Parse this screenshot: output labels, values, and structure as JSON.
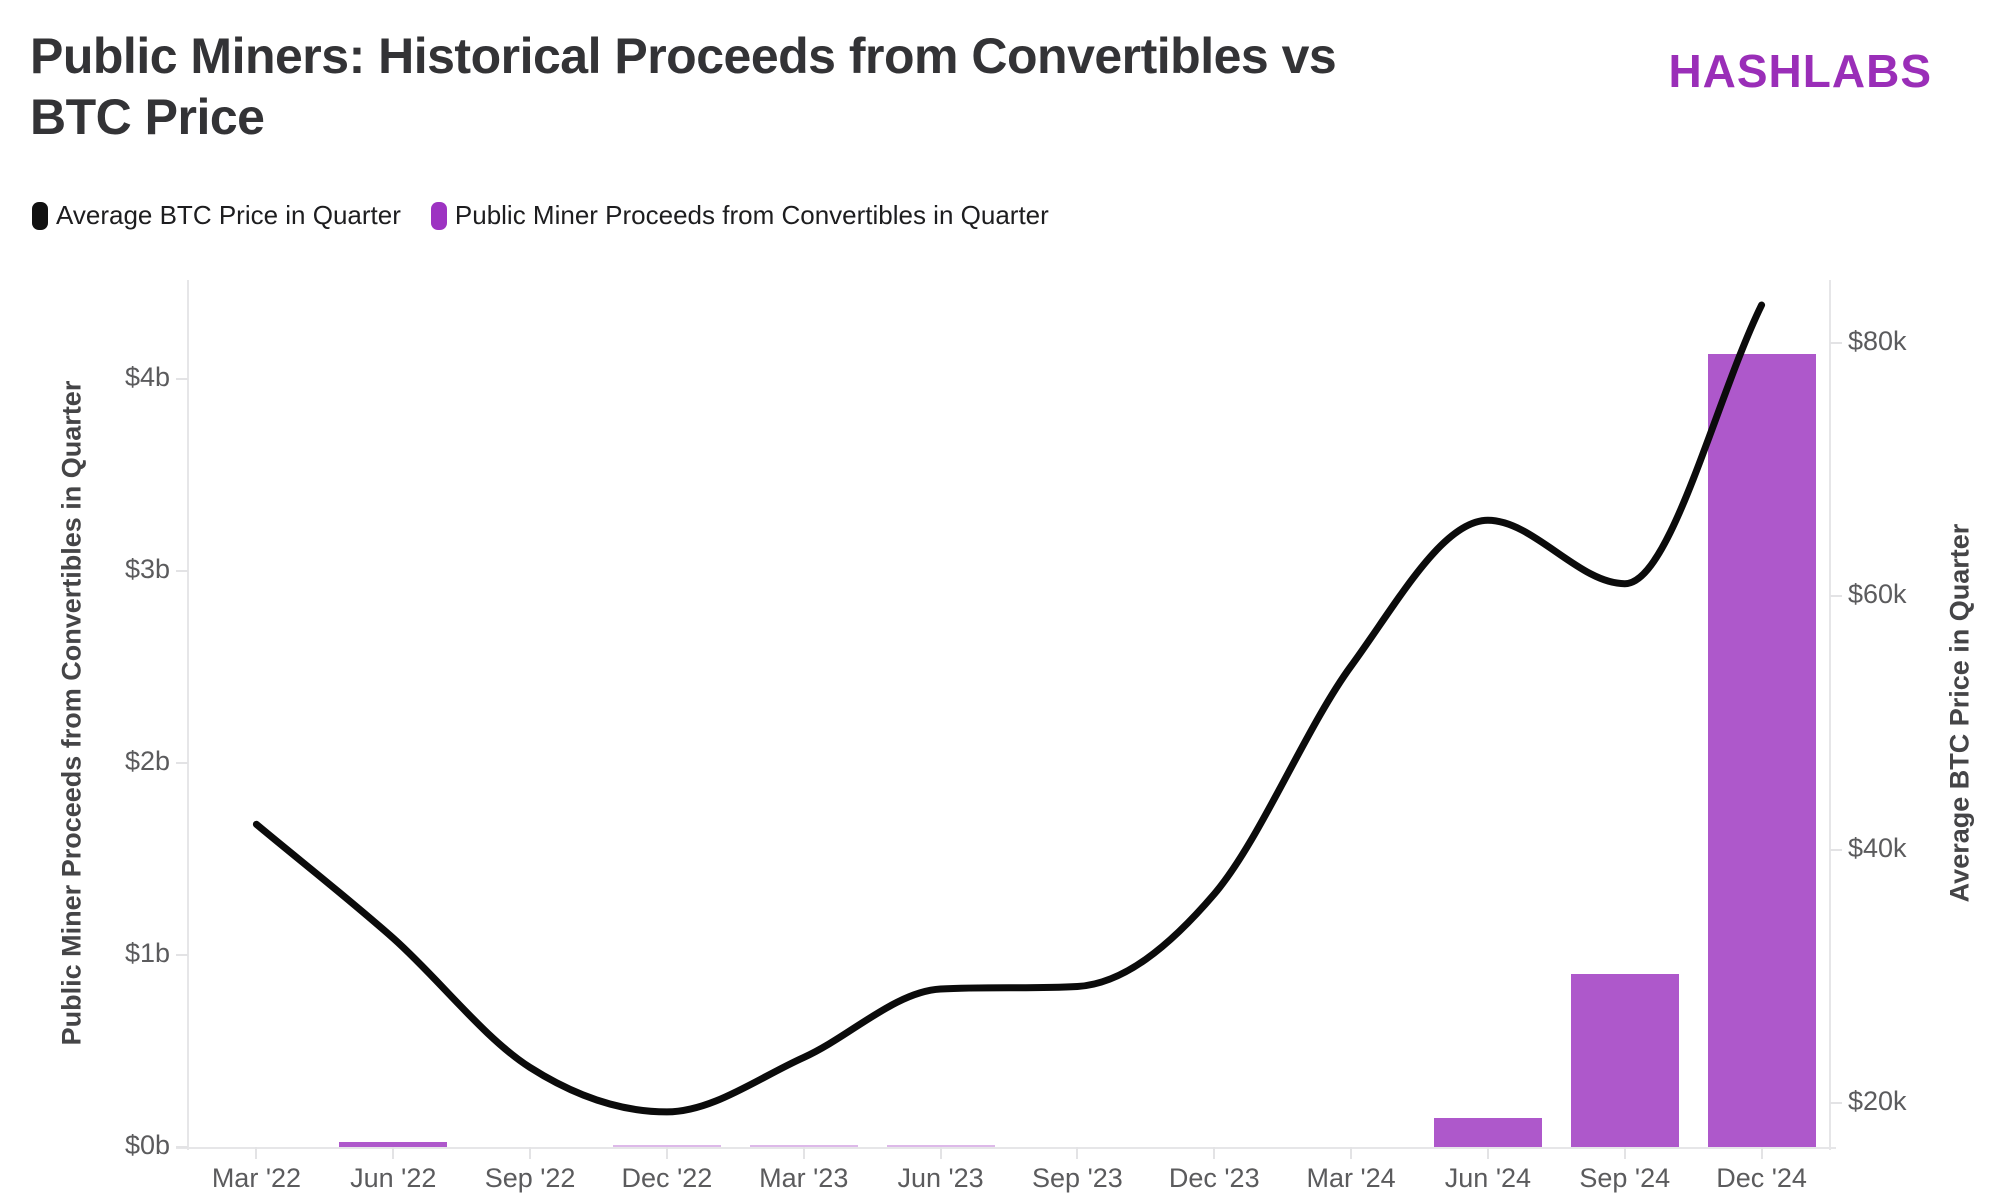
{
  "header": {
    "title": "Public Miners: Historical Proceeds from Convertibles vs BTC Price",
    "title_lines": [
      "Public Miners: Historical Proceeds from Convertibles vs",
      "BTC Price"
    ],
    "logo": "HASHLABS",
    "logo_color": "#9a2eb8"
  },
  "legend": [
    {
      "label": "Average BTC Price in Quarter",
      "color": "#111111"
    },
    {
      "label": "Public Miner Proceeds from Convertibles in Quarter",
      "color": "#9d33c2"
    }
  ],
  "chart_data": {
    "type": "mixed",
    "categories": [
      "Mar '22",
      "Jun '22",
      "Sep '22",
      "Dec '22",
      "Mar '23",
      "Jun '23",
      "Sep '23",
      "Dec '23",
      "Mar '24",
      "Jun '24",
      "Sep '24",
      "Dec '24"
    ],
    "series": [
      {
        "name": "Average BTC Price in Quarter",
        "type": "line",
        "axis": "right",
        "color": "#0b0b0b",
        "unit": "USD thousands",
        "values": [
          42,
          33,
          22.8,
          19.3,
          23.6,
          29,
          29.2,
          36.5,
          54.5,
          66,
          61,
          83
        ]
      },
      {
        "name": "Public Miner Proceeds from Convertibles in Quarter",
        "type": "bar",
        "axis": "left",
        "color": "#ae58cb",
        "unit": "USD billions",
        "values": [
          0,
          0.025,
          0,
          0.008,
          0.004,
          0.004,
          0,
          0,
          0,
          0.15,
          0.9,
          4.13
        ]
      }
    ],
    "left_axis": {
      "title": "Public Miner Proceeds from Convertibles in Quarter",
      "ticks": [
        "$0b",
        "$1b",
        "$2b",
        "$3b",
        "$4b"
      ],
      "tick_values_b": [
        0,
        1,
        2,
        3,
        4
      ],
      "range_b": [
        0,
        4.52
      ]
    },
    "right_axis": {
      "title": "Average BTC Price in Quarter",
      "ticks": [
        "$20k",
        "$40k",
        "$60k",
        "$80k"
      ],
      "tick_values_k": [
        20,
        40,
        60,
        80
      ],
      "range_k": [
        16.5,
        85
      ]
    },
    "grid": "off",
    "legend_position": "top-left"
  }
}
